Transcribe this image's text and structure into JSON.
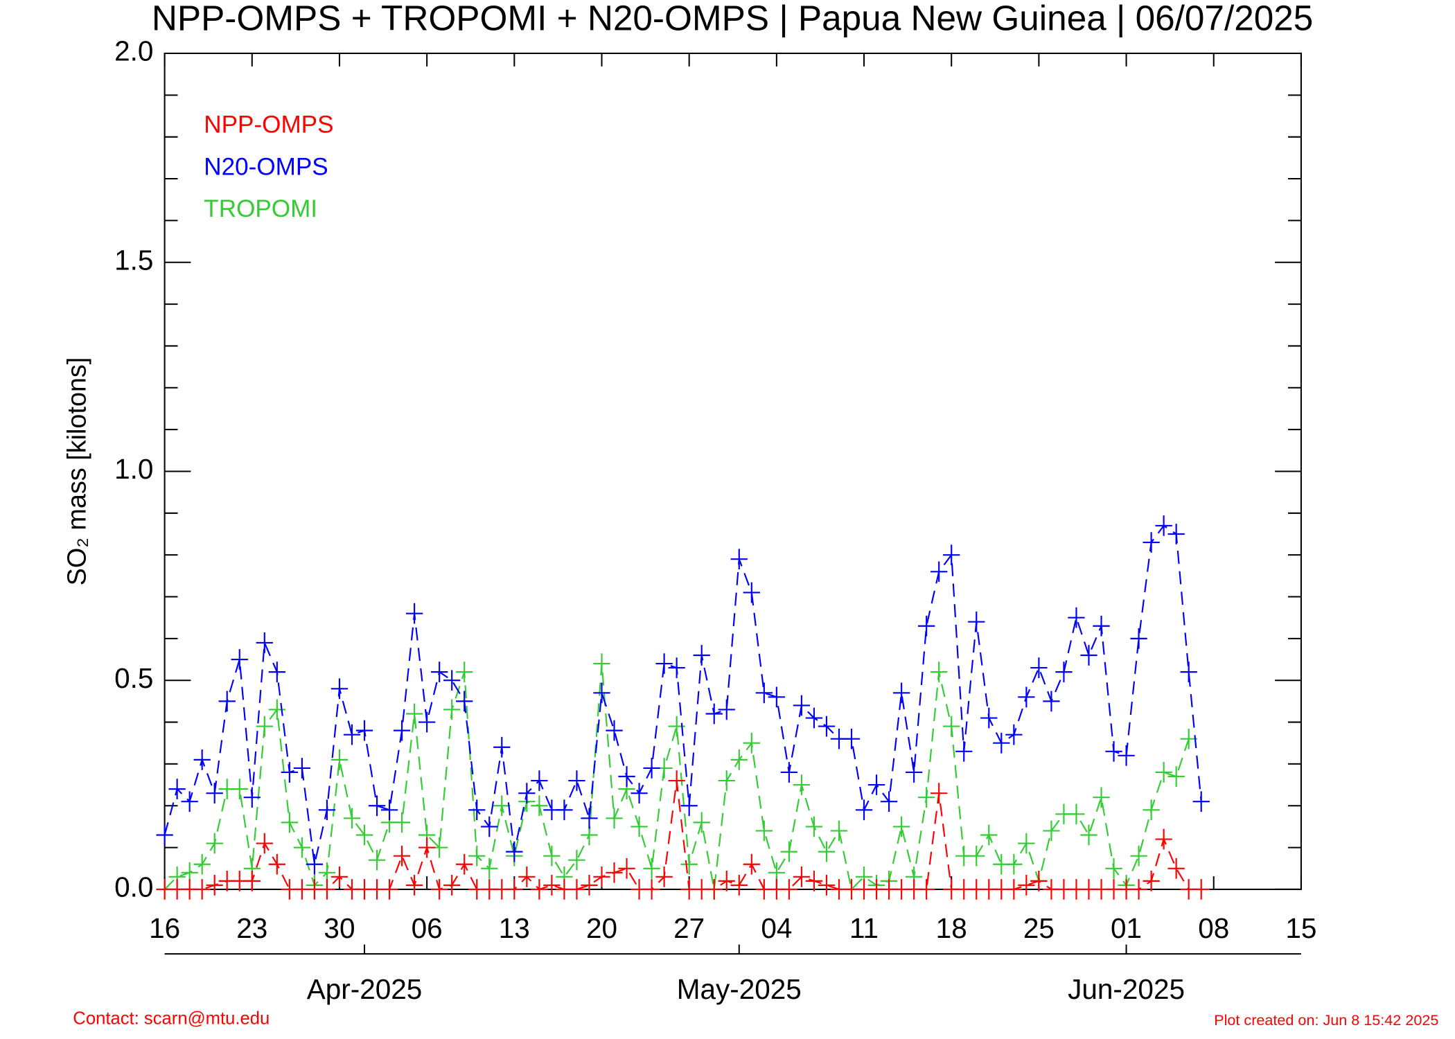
{
  "chart_data": {
    "type": "line",
    "title": "NPP-OMPS + TROPOMI + N20-OMPS | Papua New Guinea | 06/07/2025",
    "ylabel": "SO₂ mass [kilotons]",
    "contact": "Contact: scarn@mtu.edu",
    "created": "Plot created on: Jun  8 15:42 2025",
    "legend": "upper left",
    "xlim": [
      "2025-03-16",
      "2025-06-15"
    ],
    "xticks": [
      {
        "value": "2025-03-16",
        "label": "16"
      },
      {
        "value": "2025-03-23",
        "label": "23"
      },
      {
        "value": "2025-03-30",
        "label": "30"
      },
      {
        "value": "2025-04-06",
        "label": "06"
      },
      {
        "value": "2025-04-13",
        "label": "13"
      },
      {
        "value": "2025-04-20",
        "label": "20"
      },
      {
        "value": "2025-04-27",
        "label": "27"
      },
      {
        "value": "2025-05-04",
        "label": "04"
      },
      {
        "value": "2025-05-11",
        "label": "11"
      },
      {
        "value": "2025-05-18",
        "label": "18"
      },
      {
        "value": "2025-05-25",
        "label": "25"
      },
      {
        "value": "2025-06-01",
        "label": "01"
      },
      {
        "value": "2025-06-08",
        "label": "08"
      },
      {
        "value": "2025-06-15",
        "label": "15"
      }
    ],
    "monthticks": [
      {
        "value": "2025-04-01",
        "label": "Apr-2025"
      },
      {
        "value": "2025-05-01",
        "label": "May-2025"
      },
      {
        "value": "2025-06-01",
        "label": "Jun-2025"
      }
    ],
    "ylim": [
      0,
      2
    ],
    "yticks": [
      {
        "value": 0,
        "label": "0.0"
      },
      0.5,
      {
        "value": 1,
        "label": "1.0"
      },
      1.5,
      {
        "value": 2,
        "label": "2.0"
      }
    ],
    "yminorticks": [
      0.1,
      0.2,
      0.3,
      0.4,
      0.6,
      0.7,
      0.8,
      0.9,
      1.1,
      1.2,
      1.3,
      1.4,
      1.6,
      1.7,
      1.8,
      1.9
    ],
    "x": [
      "2025-03-16",
      "2025-03-17",
      "2025-03-18",
      "2025-03-19",
      "2025-03-20",
      "2025-03-21",
      "2025-03-22",
      "2025-03-23",
      "2025-03-24",
      "2025-03-25",
      "2025-03-26",
      "2025-03-27",
      "2025-03-28",
      "2025-03-29",
      "2025-03-30",
      "2025-03-31",
      "2025-04-01",
      "2025-04-02",
      "2025-04-03",
      "2025-04-04",
      "2025-04-05",
      "2025-04-06",
      "2025-04-07",
      "2025-04-08",
      "2025-04-09",
      "2025-04-10",
      "2025-04-11",
      "2025-04-12",
      "2025-04-13",
      "2025-04-14",
      "2025-04-15",
      "2025-04-16",
      "2025-04-17",
      "2025-04-18",
      "2025-04-19",
      "2025-04-20",
      "2025-04-21",
      "2025-04-22",
      "2025-04-23",
      "2025-04-24",
      "2025-04-25",
      "2025-04-26",
      "2025-04-27",
      "2025-04-28",
      "2025-04-29",
      "2025-04-30",
      "2025-05-01",
      "2025-05-02",
      "2025-05-03",
      "2025-05-04",
      "2025-05-05",
      "2025-05-06",
      "2025-05-07",
      "2025-05-08",
      "2025-05-09",
      "2025-05-10",
      "2025-05-11",
      "2025-05-12",
      "2025-05-13",
      "2025-05-14",
      "2025-05-15",
      "2025-05-16",
      "2025-05-17",
      "2025-05-18",
      "2025-05-19",
      "2025-05-20",
      "2025-05-21",
      "2025-05-22",
      "2025-05-23",
      "2025-05-24",
      "2025-05-25",
      "2025-05-26",
      "2025-05-27",
      "2025-05-28",
      "2025-05-29",
      "2025-05-30",
      "2025-05-31",
      "2025-06-01",
      "2025-06-02",
      "2025-06-03",
      "2025-06-04",
      "2025-06-05",
      "2025-06-06",
      "2025-06-07"
    ],
    "series": [
      {
        "name": "NPP-OMPS",
        "color": "#ff0000",
        "values": [
          0,
          0,
          0,
          0,
          0.01,
          0.02,
          0.02,
          0.02,
          0.11,
          0.06,
          0,
          0,
          0,
          0,
          0.03,
          0,
          0,
          0,
          0,
          0.08,
          0.01,
          0.1,
          0,
          0.01,
          0.06,
          0,
          0,
          0,
          0,
          0.03,
          0,
          0.01,
          0,
          0,
          0.01,
          0.03,
          0.04,
          0.05,
          0,
          0,
          0.03,
          0.26,
          0,
          0,
          0,
          0.02,
          0.01,
          0.06,
          0,
          0,
          0,
          0.03,
          0.02,
          0.01,
          0,
          0,
          0,
          0,
          0,
          0,
          0,
          0,
          0.23,
          0,
          0,
          0,
          0,
          0,
          0,
          0.01,
          0.02,
          0,
          0,
          0,
          0,
          0,
          0,
          0,
          0,
          0.02,
          0.12,
          0.05,
          0,
          0
        ]
      },
      {
        "name": "N20-OMPS",
        "color": "#0000ff",
        "values": [
          0.13,
          0.24,
          0.21,
          0.31,
          0.23,
          0.45,
          0.55,
          0.22,
          0.59,
          0.52,
          0.28,
          0.29,
          0.06,
          0.19,
          0.48,
          0.37,
          0.38,
          0.2,
          0.19,
          0.38,
          0.66,
          0.4,
          0.52,
          0.5,
          0.45,
          0.19,
          0.15,
          0.34,
          0.09,
          0.23,
          0.26,
          0.19,
          0.19,
          0.26,
          0.17,
          0.47,
          0.38,
          0.27,
          0.23,
          0.29,
          0.54,
          0.53,
          0.2,
          0.56,
          0.42,
          0.43,
          0.79,
          0.71,
          0.47,
          0.46,
          0.28,
          0.44,
          0.41,
          0.39,
          0.36,
          0.36,
          0.19,
          0.25,
          0.21,
          0.47,
          0.28,
          0.63,
          0.76,
          0.8,
          0.33,
          0.64,
          0.41,
          0.35,
          0.37,
          0.46,
          0.53,
          0.45,
          0.52,
          0.65,
          0.56,
          0.63,
          0.33,
          0.32,
          0.6,
          0.83,
          0.87,
          0.85,
          0.52,
          0.21
        ]
      },
      {
        "name": "TROPOMI",
        "color": "#33cc33",
        "values": [
          0,
          0.03,
          0.04,
          0.06,
          0.11,
          0.24,
          0.24,
          0.05,
          0.39,
          0.43,
          0.16,
          0.1,
          0.01,
          0.04,
          0.31,
          0.17,
          0.13,
          0.07,
          0.16,
          0.16,
          0.42,
          0.13,
          0.1,
          0.43,
          0.52,
          0.08,
          0.05,
          0.2,
          0.08,
          0.21,
          0.2,
          0.08,
          0.03,
          0.07,
          0.13,
          0.54,
          0.17,
          0.24,
          0.15,
          0.05,
          0.29,
          0.39,
          0.06,
          0.16,
          0,
          0.26,
          0.31,
          0.35,
          0.14,
          0.04,
          0.09,
          0.25,
          0.15,
          0.09,
          0.14,
          0,
          0.03,
          0.01,
          0.02,
          0.15,
          0.03,
          0.22,
          0.52,
          0.39,
          0.08,
          0.08,
          0.13,
          0.06,
          0.06,
          0.11,
          0.02,
          0.14,
          0.18,
          0.18,
          0.13,
          0.22,
          0.05,
          0.01,
          0.08,
          0.19,
          0.28,
          0.27,
          0.36,
          null
        ]
      }
    ]
  }
}
